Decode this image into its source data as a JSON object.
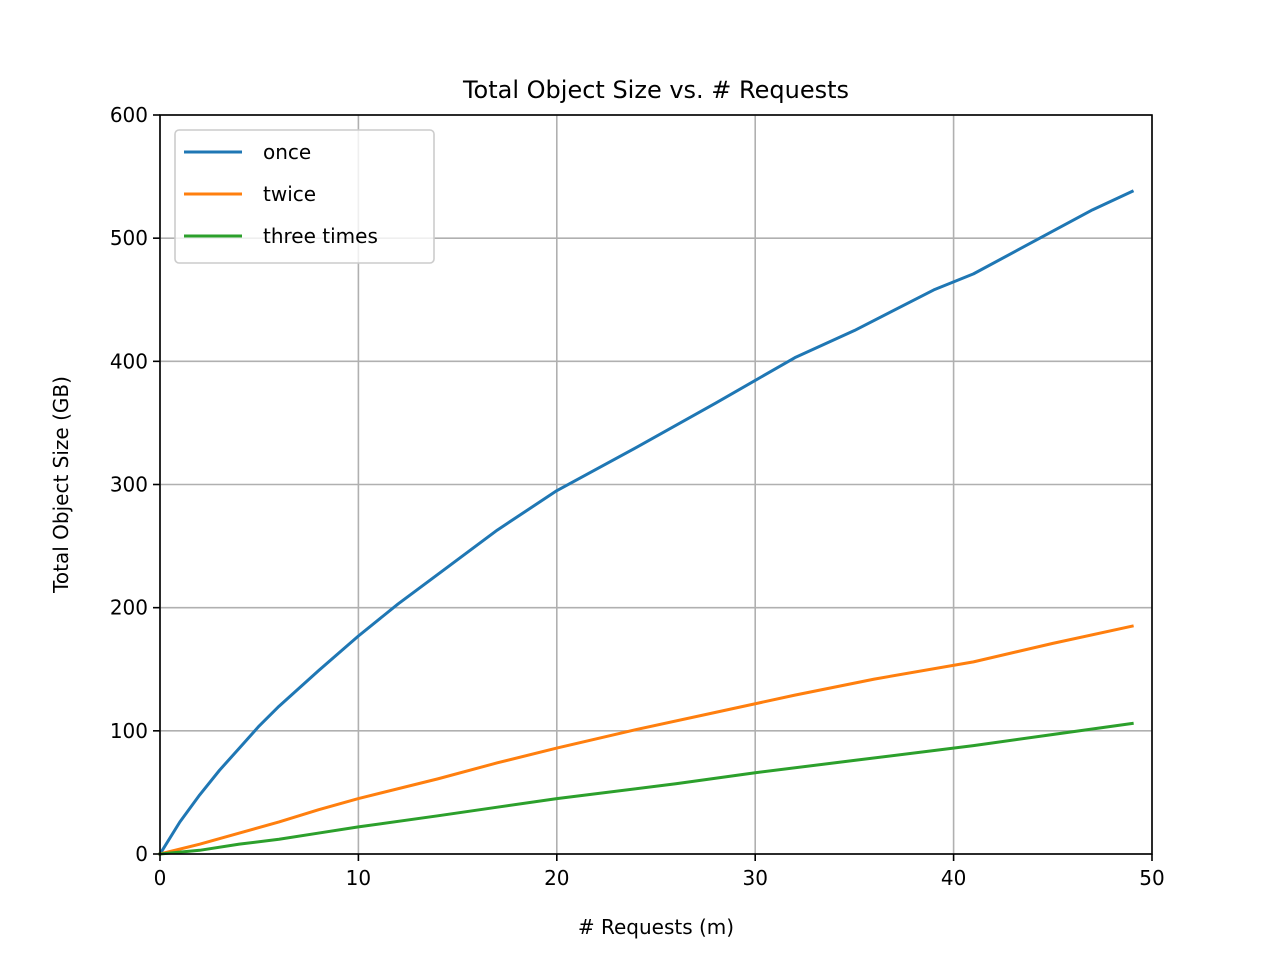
{
  "chart_data": {
    "type": "line",
    "title": "Total Object Size vs. # Requests",
    "xlabel": "# Requests (m)",
    "ylabel": "Total Object Size (GB)",
    "xlim": [
      0,
      50
    ],
    "ylim": [
      0,
      600
    ],
    "xticks": [
      0,
      10,
      20,
      30,
      40,
      50
    ],
    "yticks": [
      0,
      100,
      200,
      300,
      400,
      500,
      600
    ],
    "grid": true,
    "legend_position": "top-left",
    "series": [
      {
        "name": "once",
        "color": "#1f77b4",
        "x": [
          0,
          1,
          2,
          3,
          4,
          5,
          6,
          8,
          10,
          12,
          14,
          17,
          20,
          24,
          28,
          32,
          35,
          39,
          41,
          44,
          47,
          49
        ],
        "y": [
          0,
          26,
          48,
          68,
          86,
          104,
          120,
          149,
          177,
          203,
          227,
          263,
          295,
          330,
          366,
          403,
          425,
          458,
          471,
          497,
          523,
          538
        ]
      },
      {
        "name": "twice",
        "color": "#ff7f0e",
        "x": [
          0,
          2,
          4,
          6,
          8,
          10,
          14,
          17,
          20,
          24,
          28,
          32,
          36,
          41,
          45,
          49
        ],
        "y": [
          0,
          8,
          17,
          26,
          36,
          45,
          61,
          74,
          86,
          101,
          115,
          129,
          142,
          156,
          171,
          185
        ]
      },
      {
        "name": "three times",
        "color": "#2ca02c",
        "x": [
          0,
          2,
          4,
          6,
          8,
          10,
          14,
          17,
          20,
          26,
          30,
          35,
          41,
          45,
          49
        ],
        "y": [
          0,
          3,
          8,
          12,
          17,
          22,
          31,
          38,
          45,
          57,
          66,
          76,
          88,
          97,
          106
        ]
      }
    ]
  }
}
